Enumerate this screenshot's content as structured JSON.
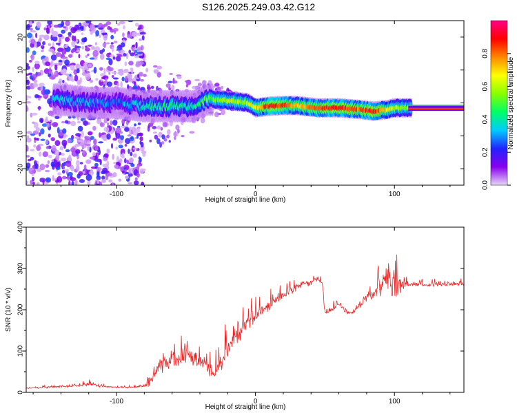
{
  "title": "S126.2025.249.03.42.G12",
  "colors": {
    "series": "#ee2222",
    "axis": "#000000",
    "ridge_ok": "#22cc22"
  },
  "chart_data": [
    {
      "type": "heatmap",
      "name": "spectrogram",
      "xlabel": "Height of straight line (km)",
      "ylabel": "Frequency (Hz)",
      "xlim": [
        -165,
        150
      ],
      "ylim": [
        -25,
        25
      ],
      "xticks": [
        -100,
        0,
        100
      ],
      "xtick_labels": [
        "-100",
        "0",
        "100"
      ],
      "yticks": [
        -20,
        -10,
        0,
        10,
        20
      ],
      "ytick_labels": [
        "-20",
        "-10",
        "0",
        "10",
        "20"
      ],
      "colorbar": {
        "label": "Normalized spectral amplitude",
        "range": [
          0.0,
          1.0
        ],
        "ticks": [
          0.0,
          0.2,
          0.4,
          0.6,
          0.8
        ],
        "tick_labels": [
          "0.0",
          "0.2",
          "0.4",
          "0.6",
          "0.8"
        ],
        "stops": [
          "#e8d8f8",
          "#8800ee",
          "#2222ff",
          "#00ccff",
          "#00ff66",
          "#88ff00",
          "#ffff00",
          "#ff8800",
          "#ff0000",
          "#ff0088"
        ]
      },
      "ridge": {
        "x": [
          -140,
          -120,
          -100,
          -80,
          -60,
          -45,
          -35,
          -25,
          -15,
          -5,
          0,
          10,
          20,
          30,
          45,
          60,
          75,
          85,
          95,
          100,
          110,
          120,
          150
        ],
        "freq": [
          1,
          0,
          0,
          -1,
          -1,
          -1,
          1,
          1,
          0.5,
          0,
          -1.5,
          -1,
          -0.8,
          -0.8,
          -1.5,
          -1.5,
          -2,
          -2.5,
          -2,
          -1.5,
          -1.5,
          -1.5,
          -1.5
        ],
        "amplitude": [
          0.35,
          0.3,
          0.25,
          0.4,
          0.45,
          0.4,
          0.5,
          0.55,
          0.6,
          0.6,
          0.65,
          0.9,
          0.85,
          0.7,
          0.85,
          0.9,
          0.8,
          0.9,
          0.7,
          0.6,
          0.55,
          0.95,
          0.95
        ]
      },
      "fixed_line": {
        "x_range": [
          110,
          150
        ],
        "freq": [
          -1,
          -2
        ]
      }
    },
    {
      "type": "line",
      "name": "snr",
      "xlabel": "Height of straight line (km)",
      "ylabel": "SNR (10 * v/v)",
      "xlim": [
        -165,
        150
      ],
      "ylim": [
        0,
        400
      ],
      "xticks": [
        -100,
        0,
        100
      ],
      "xtick_labels": [
        "-100",
        "0",
        "100"
      ],
      "yticks": [
        0,
        100,
        200,
        300,
        400
      ],
      "ytick_labels": [
        "0",
        "100",
        "200",
        "300",
        "400"
      ],
      "series": [
        {
          "name": "SNR",
          "x": [
            -165,
            -150,
            -130,
            -120,
            -110,
            -100,
            -90,
            -80,
            -75,
            -70,
            -60,
            -50,
            -40,
            -35,
            -30,
            -25,
            -20,
            -10,
            -5,
            0,
            10,
            20,
            30,
            40,
            45,
            48,
            50,
            55,
            60,
            65,
            70,
            75,
            80,
            85,
            90,
            95,
            100,
            105,
            110,
            120,
            130,
            140,
            150
          ],
          "y": [
            10,
            12,
            15,
            20,
            14,
            12,
            12,
            15,
            30,
            60,
            80,
            90,
            80,
            60,
            40,
            70,
            100,
            150,
            170,
            185,
            210,
            235,
            255,
            265,
            275,
            265,
            190,
            200,
            215,
            195,
            190,
            210,
            230,
            240,
            255,
            270,
            265,
            260,
            262,
            260,
            260,
            262,
            262
          ],
          "noise": [
            4,
            4,
            5,
            8,
            5,
            4,
            4,
            6,
            30,
            40,
            45,
            40,
            40,
            40,
            30,
            45,
            50,
            40,
            35,
            30,
            25,
            20,
            18,
            15,
            15,
            15,
            12,
            12,
            12,
            10,
            10,
            14,
            20,
            30,
            50,
            60,
            70,
            50,
            12,
            10,
            10,
            10,
            10
          ]
        }
      ]
    }
  ]
}
